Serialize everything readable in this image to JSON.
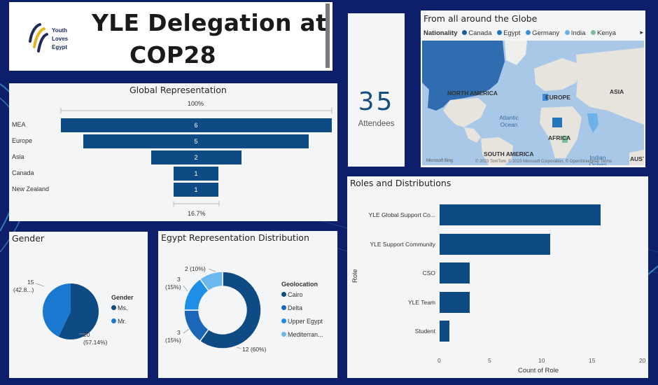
{
  "header": {
    "logo_lines": [
      "Youth",
      "Loves",
      "Egypt"
    ],
    "title_line1": "YLE Delegation at",
    "title_line2": "COP28"
  },
  "kpi": {
    "value": "35",
    "label": "Attendees"
  },
  "map": {
    "title": "From all around the Globe",
    "legend_title": "Nationality",
    "legend": [
      {
        "label": "Canada",
        "color": "#1c5a9c"
      },
      {
        "label": "Egypt",
        "color": "#2376bc"
      },
      {
        "label": "Germany",
        "color": "#3d8fd9"
      },
      {
        "label": "India",
        "color": "#6db1ea"
      },
      {
        "label": "Kenya",
        "color": "#7fbf9a"
      }
    ],
    "more_arrow": "▸",
    "labels": {
      "north_america": "NORTH AMERICA",
      "europe": "EUROPE",
      "asia": "ASIA",
      "africa": "AFRICA",
      "south_america": "SOUTH AMERICA",
      "atlantic": "Atlantic Ocean",
      "indian": "Indian Ocean",
      "australia": "AUST"
    },
    "bing": "Microsoft Bing",
    "copyright": "© 2023 TomTom, © 2023 Microsoft Corporation, © OpenStreetMap  Terms"
  },
  "funnel": {
    "title": "Global Representation",
    "top_pct": "100%",
    "bottom_pct": "16.7%",
    "bar_color": "#0e4a84"
  },
  "gender": {
    "title": "Gender",
    "legend_title": "Gender",
    "legend": [
      {
        "label": "Ms.",
        "color": "#0e4a84"
      },
      {
        "label": "Mr.",
        "color": "#1b78d0"
      }
    ],
    "label_mr": [
      "15",
      "(42.8...)"
    ],
    "label_ms": [
      "20",
      "(57.14%)"
    ]
  },
  "egypt": {
    "title": "Egypt Representation Distribution",
    "legend_title": "Geolocation",
    "legend": [
      {
        "label": "Cairo",
        "color": "#0e4a84"
      },
      {
        "label": "Delta",
        "color": "#1b66b8"
      },
      {
        "label": "Upper Egypt",
        "color": "#1f8ee6"
      },
      {
        "label": "Mediterran...",
        "color": "#6cb8f0"
      }
    ],
    "labels": {
      "cairo": "12 (60%)",
      "delta": [
        "3",
        "(15%)"
      ],
      "upper": [
        "3",
        "(15%)"
      ],
      "med": "2 (10%)"
    }
  },
  "roles": {
    "title": "Roles and Distributions",
    "xlabel": "Count of Role",
    "ylabel": "Role",
    "xticks": [
      "0",
      "5",
      "10",
      "15",
      "20"
    ],
    "bar_color": "#0e4a84"
  },
  "chart_data": [
    {
      "type": "bar",
      "title": "Global Representation",
      "categories": [
        "MEA",
        "Europe",
        "Asia",
        "Canada",
        "New Zealand"
      ],
      "values": [
        6,
        5,
        2,
        1,
        1
      ]
    },
    {
      "type": "pie",
      "title": "Gender",
      "categories": [
        "Ms.",
        "Mr."
      ],
      "values": [
        20,
        15
      ]
    },
    {
      "type": "pie",
      "title": "Egypt Representation Distribution",
      "categories": [
        "Cairo",
        "Delta",
        "Upper Egypt",
        "Mediterran..."
      ],
      "values": [
        12,
        3,
        3,
        2
      ]
    },
    {
      "type": "bar",
      "title": "Roles and Distributions",
      "categories": [
        "YLE Global Support Co...",
        "YLE Support Community",
        "CSO",
        "YLE Team",
        "Student"
      ],
      "values": [
        16,
        11,
        3,
        3,
        1
      ],
      "xlabel": "Count of Role",
      "ylabel": "Role",
      "xlim": [
        0,
        20
      ]
    }
  ]
}
